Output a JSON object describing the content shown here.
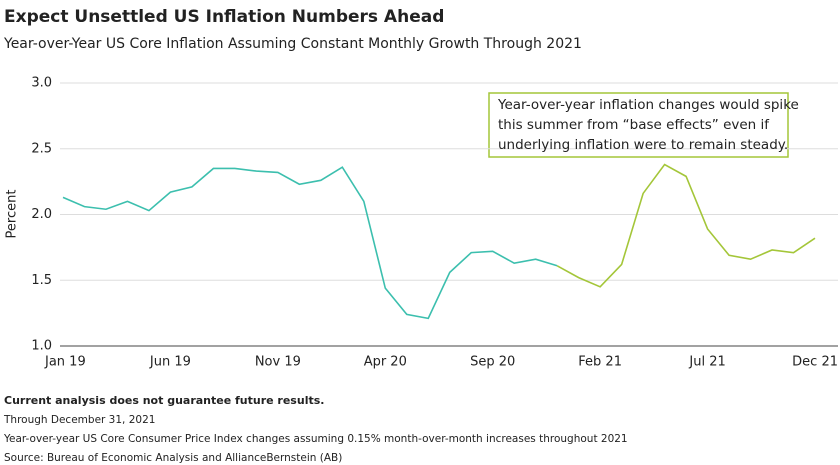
{
  "chart_data": {
    "type": "line",
    "title": "Expect Unsettled US Inflation Numbers Ahead",
    "subtitle": "Year-over-Year US Core Inflation Assuming Constant Monthly Growth Through 2021",
    "y_label": "Percent",
    "categories": [
      "Jan 19",
      null,
      null,
      null,
      null,
      "Jun 19",
      null,
      null,
      null,
      null,
      "Nov 19",
      null,
      null,
      null,
      null,
      "Apr 20",
      null,
      null,
      null,
      null,
      "Sep 20",
      null,
      null,
      null,
      null,
      "Feb 21",
      null,
      null,
      null,
      null,
      "Jul 21",
      null,
      null,
      null,
      null,
      "Dec 21"
    ],
    "series": [
      {
        "color": "#3cbfae",
        "values": [
          2.13,
          2.06,
          2.04,
          2.1,
          2.03,
          2.17,
          2.21,
          2.35,
          2.35,
          2.33,
          2.32,
          2.23,
          2.26,
          2.36,
          2.1,
          1.44,
          1.24,
          1.21,
          1.56,
          1.71,
          1.72,
          1.63,
          1.66,
          1.61,
          null,
          null,
          null,
          null,
          null,
          null,
          null,
          null,
          null,
          null,
          null,
          null
        ]
      },
      {
        "color": "#a4c639",
        "values": [
          null,
          null,
          null,
          null,
          null,
          null,
          null,
          null,
          null,
          null,
          null,
          null,
          null,
          null,
          null,
          null,
          null,
          null,
          null,
          null,
          null,
          null,
          null,
          1.61,
          1.52,
          1.45,
          1.62,
          2.16,
          2.38,
          2.29,
          1.89,
          1.69,
          1.66,
          1.73,
          1.71,
          1.82
        ]
      }
    ],
    "ylim": [
      1.0,
      3.0
    ],
    "yticks": [
      {
        "value": 1.0,
        "label": "1.0"
      },
      {
        "value": 1.5,
        "label": "1.5"
      },
      {
        "value": 2.0,
        "label": "2.0"
      },
      {
        "value": 2.5,
        "label": "2.5"
      },
      {
        "value": 3.0,
        "label": "3.0"
      }
    ],
    "grid": true,
    "annotation": [
      "Year-over-year inflation changes would spike",
      "this summer from “base effects” even if",
      "underlying inflation were to remain steady."
    ],
    "footnotes": [
      "Current analysis does not guarantee future results.",
      "Through December 31, 2021",
      "Year-over-year US Core Consumer Price Index changes assuming 0.15% month-over-month increases throughout 2021",
      "Source: Bureau of Economic Analysis and AllianceBernstein (AB)"
    ]
  }
}
